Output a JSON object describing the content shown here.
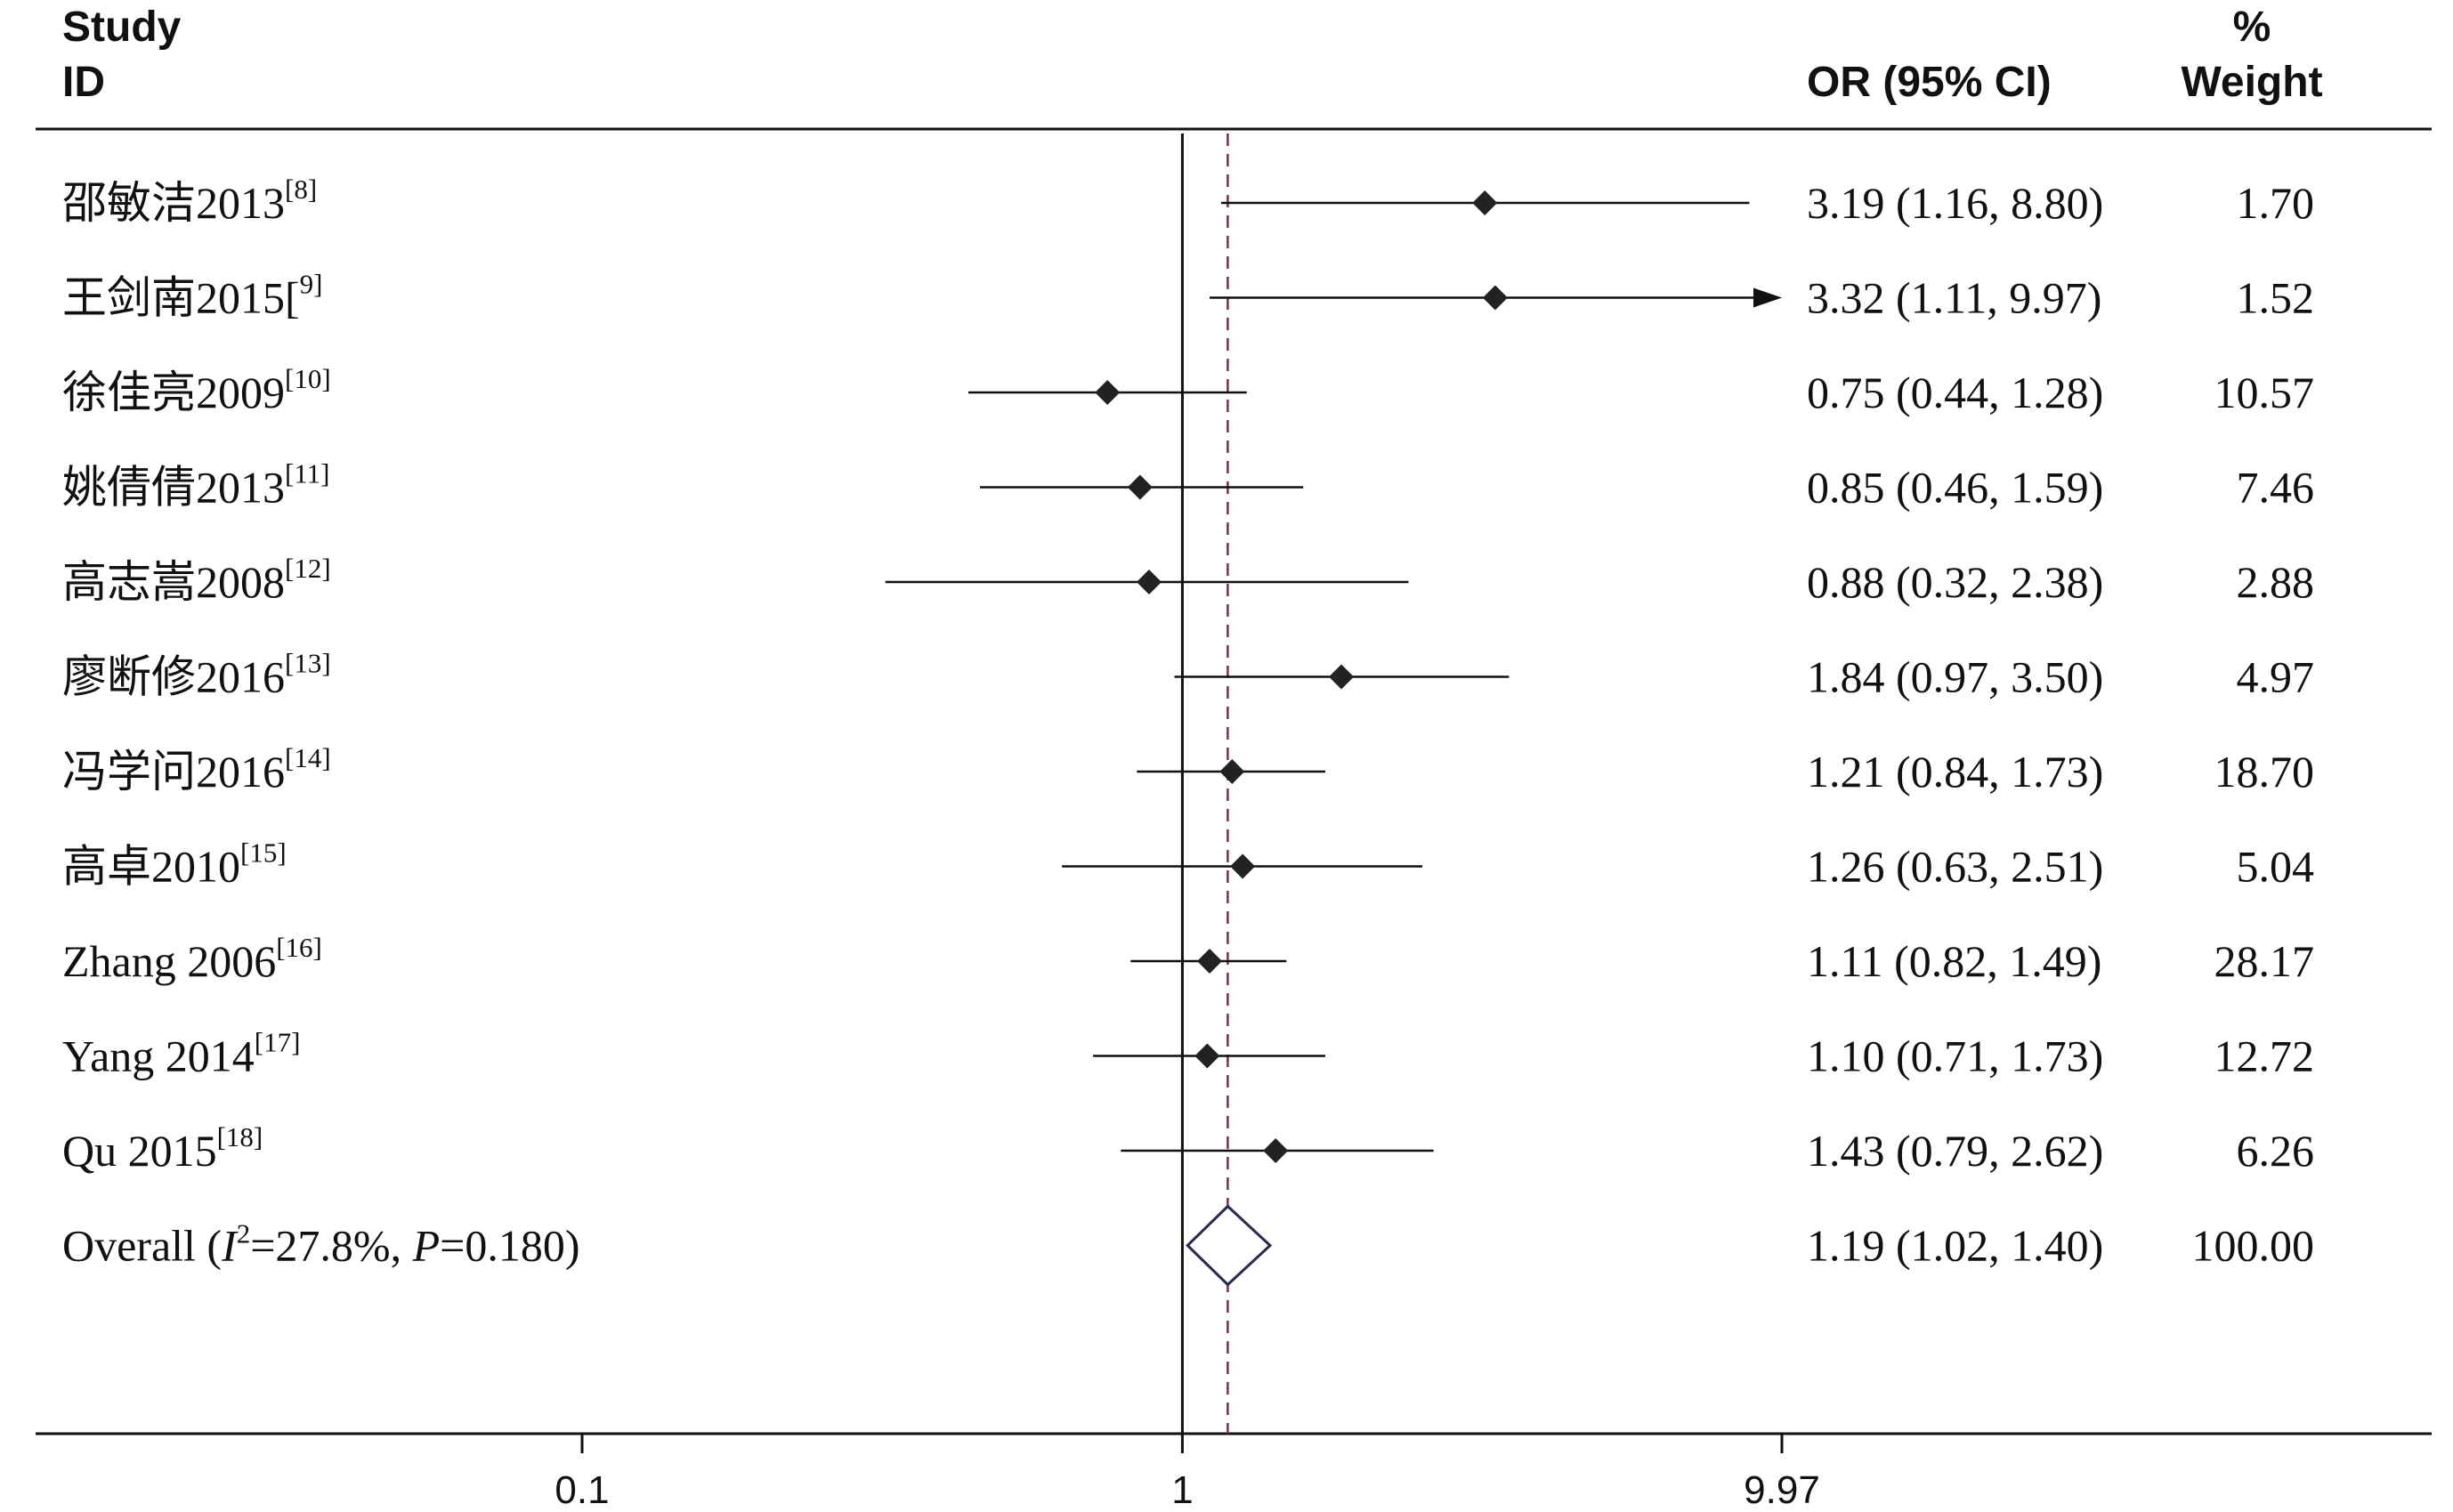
{
  "chart_data": {
    "type": "forest",
    "headers": {
      "study_line1": "Study",
      "study_line2": "ID",
      "or": "OR (95% CI)",
      "weight_line1": "%",
      "weight_line2": "Weight"
    },
    "x_scale": "log",
    "xlim": [
      0.1,
      9.97
    ],
    "x_ticks": [
      {
        "value": 0.1,
        "label": "0.1"
      },
      {
        "value": 1,
        "label": "1"
      },
      {
        "value": 9.97,
        "label": "9.97"
      }
    ],
    "null_line": 1,
    "overall_line": 1.19,
    "studies": [
      {
        "name": "邵敏洁2013",
        "ref": "[8]",
        "or": 3.19,
        "lo": 1.16,
        "hi": 8.8,
        "or_text": "3.19 (1.16, 8.80)",
        "weight": "1.70",
        "arrow": false
      },
      {
        "name": "王剑南2015[",
        "ref": "9]",
        "or": 3.32,
        "lo": 1.11,
        "hi": 9.97,
        "or_text": "3.32 (1.11, 9.97)",
        "weight": "1.52",
        "arrow": true
      },
      {
        "name": "徐佳亮2009",
        "ref": "[10]",
        "or": 0.75,
        "lo": 0.44,
        "hi": 1.28,
        "or_text": "0.75 (0.44, 1.28)",
        "weight": "10.57",
        "arrow": false
      },
      {
        "name": "姚倩倩2013",
        "ref": "[11]",
        "or": 0.85,
        "lo": 0.46,
        "hi": 1.59,
        "or_text": "0.85 (0.46, 1.59)",
        "weight": "7.46",
        "arrow": false
      },
      {
        "name": "高志嵩2008",
        "ref": "[12]",
        "or": 0.88,
        "lo": 0.32,
        "hi": 2.38,
        "or_text": "0.88 (0.32, 2.38)",
        "weight": "2.88",
        "arrow": false
      },
      {
        "name": "廖断修2016",
        "ref": "[13]",
        "or": 1.84,
        "lo": 0.97,
        "hi": 3.5,
        "or_text": "1.84 (0.97, 3.50)",
        "weight": "4.97",
        "arrow": false
      },
      {
        "name": "冯学问2016",
        "ref": "[14]",
        "or": 1.21,
        "lo": 0.84,
        "hi": 1.73,
        "or_text": "1.21 (0.84, 1.73)",
        "weight": "18.70",
        "arrow": false
      },
      {
        "name": "高卓2010",
        "ref": "[15]",
        "or": 1.26,
        "lo": 0.63,
        "hi": 2.51,
        "or_text": "1.26 (0.63, 2.51)",
        "weight": "5.04",
        "arrow": false
      },
      {
        "name": "Zhang 2006",
        "ref": "[16]",
        "or": 1.11,
        "lo": 0.82,
        "hi": 1.49,
        "or_text": "1.11 (0.82, 1.49)",
        "weight": "28.17",
        "arrow": false
      },
      {
        "name": "Yang 2014",
        "ref": "[17]",
        "or": 1.1,
        "lo": 0.71,
        "hi": 1.73,
        "or_text": "1.10 (0.71, 1.73)",
        "weight": "12.72",
        "arrow": false
      },
      {
        "name": "Qu 2015",
        "ref": "[18]",
        "or": 1.43,
        "lo": 0.79,
        "hi": 2.62,
        "or_text": "1.43 (0.79, 2.62)",
        "weight": "6.26",
        "arrow": false
      }
    ],
    "overall": {
      "label_prefix": "Overall  (",
      "i_symbol": "I",
      "i_exp": "2",
      "i_value": "=27.8%, ",
      "p_symbol": "P",
      "p_value": "=0.180)",
      "or": 1.19,
      "lo": 1.02,
      "hi": 1.4,
      "or_text": "1.19 (1.02, 1.40)",
      "weight": "100.00"
    },
    "colors": {
      "ink": "#111111",
      "marker": "#222222",
      "overall_line": "#7a2e4a",
      "diamond": "#2b2a4c"
    }
  }
}
